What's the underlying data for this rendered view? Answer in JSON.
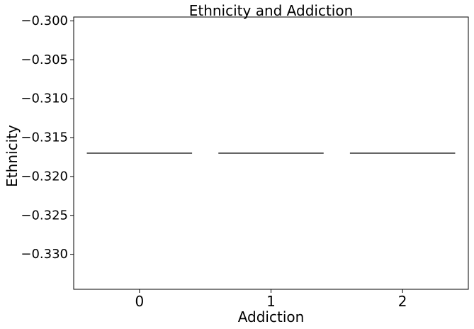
{
  "chart_data": {
    "type": "box",
    "title": "Ethnicity and Addiction",
    "xlabel": "Addiction",
    "ylabel": "Ethnicity",
    "categories": [
      "0",
      "1",
      "2"
    ],
    "values": [
      -0.317,
      -0.317,
      -0.317
    ],
    "ylim": [
      -0.3345,
      -0.2995
    ],
    "yticks": [
      -0.3,
      -0.305,
      -0.31,
      -0.315,
      -0.32,
      -0.325,
      -0.33
    ],
    "ytick_labels": [
      "−0.300",
      "−0.305",
      "−0.310",
      "−0.315",
      "−0.320",
      "−0.325",
      "−0.330"
    ],
    "grid": false,
    "legend": "none",
    "line_color": "#333333"
  }
}
